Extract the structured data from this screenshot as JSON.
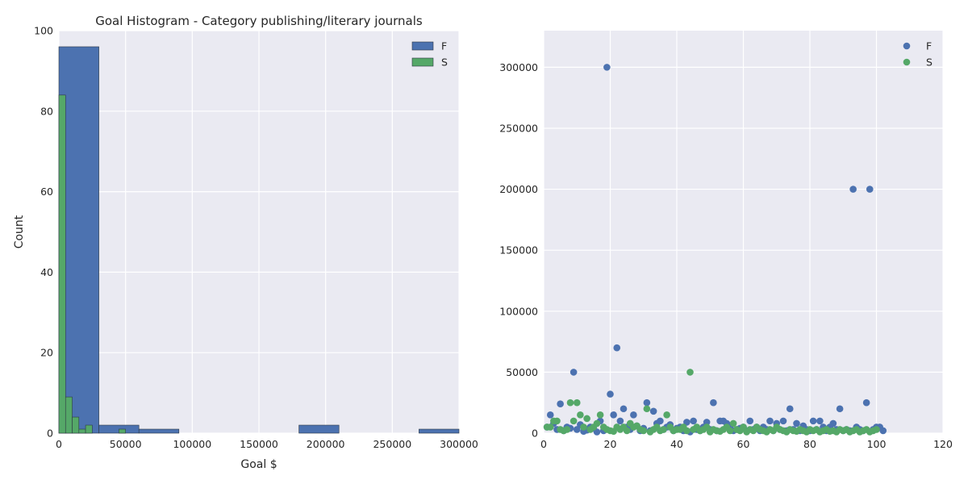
{
  "chart_data": [
    {
      "type": "bar",
      "subtype": "histogram",
      "title": "Goal Histogram - Category publishing/literary journals",
      "xlabel": "Goal $",
      "ylabel": "Count",
      "xlim": [
        0,
        300000
      ],
      "ylim": [
        0,
        100
      ],
      "xticks": [
        "0",
        "50000",
        "100000",
        "150000",
        "200000",
        "250000",
        "300000"
      ],
      "yticks": [
        "0",
        "20",
        "40",
        "60",
        "80",
        "100"
      ],
      "grid": true,
      "legend_position": "top-right",
      "series": [
        {
          "name": "F",
          "color": "#4C72B0",
          "bins": [
            {
              "x0": 0,
              "x1": 30000,
              "count": 96
            },
            {
              "x0": 30000,
              "x1": 60000,
              "count": 2
            },
            {
              "x0": 60000,
              "x1": 90000,
              "count": 1
            },
            {
              "x0": 180000,
              "x1": 210000,
              "count": 2
            },
            {
              "x0": 270000,
              "x1": 300000,
              "count": 1
            }
          ]
        },
        {
          "name": "S",
          "color": "#55A868",
          "bins": [
            {
              "x0": 0,
              "x1": 5000,
              "count": 84
            },
            {
              "x0": 5000,
              "x1": 10000,
              "count": 9
            },
            {
              "x0": 10000,
              "x1": 15000,
              "count": 4
            },
            {
              "x0": 15000,
              "x1": 20000,
              "count": 1
            },
            {
              "x0": 20000,
              "x1": 25000,
              "count": 2
            },
            {
              "x0": 45000,
              "x1": 50000,
              "count": 1
            }
          ]
        }
      ]
    },
    {
      "type": "scatter",
      "title": "",
      "xlabel": "",
      "ylabel": "",
      "xlim": [
        0,
        120
      ],
      "ylim": [
        0,
        330000
      ],
      "xticks": [
        "0",
        "20",
        "40",
        "60",
        "80",
        "100",
        "120"
      ],
      "yticks": [
        "0",
        "50000",
        "100000",
        "150000",
        "200000",
        "250000",
        "300000"
      ],
      "grid": true,
      "legend_position": "top-right",
      "series": [
        {
          "name": "F",
          "color": "#4C72B0",
          "points": [
            [
              1,
              5000
            ],
            [
              2,
              15000
            ],
            [
              3,
              8000
            ],
            [
              4,
              3000
            ],
            [
              5,
              24000
            ],
            [
              6,
              2000
            ],
            [
              7,
              5000
            ],
            [
              8,
              4000
            ],
            [
              9,
              50000
            ],
            [
              10,
              3000
            ],
            [
              11,
              7000
            ],
            [
              12,
              1500
            ],
            [
              13,
              2500
            ],
            [
              14,
              5000
            ],
            [
              15,
              4000
            ],
            [
              16,
              1000
            ],
            [
              17,
              10000
            ],
            [
              18,
              2000
            ],
            [
              19,
              300000
            ],
            [
              20,
              32000
            ],
            [
              21,
              15000
            ],
            [
              22,
              70000
            ],
            [
              23,
              10000
            ],
            [
              24,
              20000
            ],
            [
              25,
              5000
            ],
            [
              26,
              3000
            ],
            [
              27,
              15000
            ],
            [
              28,
              6000
            ],
            [
              29,
              2000
            ],
            [
              30,
              4000
            ],
            [
              31,
              25000
            ],
            [
              32,
              2000
            ],
            [
              33,
              18000
            ],
            [
              34,
              8000
            ],
            [
              35,
              10000
            ],
            [
              36,
              3000
            ],
            [
              37,
              5000
            ],
            [
              38,
              7000
            ],
            [
              39,
              2000
            ],
            [
              40,
              4000
            ],
            [
              41,
              5000
            ],
            [
              42,
              2000
            ],
            [
              43,
              9000
            ],
            [
              44,
              1000
            ],
            [
              45,
              10000
            ],
            [
              46,
              3000
            ],
            [
              47,
              2000
            ],
            [
              48,
              5000
            ],
            [
              49,
              9000
            ],
            [
              50,
              3000
            ],
            [
              51,
              25000
            ],
            [
              52,
              2000
            ],
            [
              53,
              10000
            ],
            [
              54,
              10000
            ],
            [
              55,
              8000
            ],
            [
              56,
              5000
            ],
            [
              57,
              2000
            ],
            [
              58,
              3000
            ],
            [
              59,
              4000
            ],
            [
              60,
              5000
            ],
            [
              61,
              2000
            ],
            [
              62,
              10000
            ],
            [
              63,
              3000
            ],
            [
              64,
              5000
            ],
            [
              65,
              2000
            ],
            [
              66,
              5000
            ],
            [
              67,
              3000
            ],
            [
              68,
              10000
            ],
            [
              69,
              2000
            ],
            [
              70,
              8000
            ],
            [
              71,
              3000
            ],
            [
              72,
              10000
            ],
            [
              73,
              2000
            ],
            [
              74,
              20000
            ],
            [
              75,
              3000
            ],
            [
              76,
              8000
            ],
            [
              77,
              2000
            ],
            [
              78,
              6000
            ],
            [
              79,
              3000
            ],
            [
              80,
              2000
            ],
            [
              81,
              10000
            ],
            [
              82,
              3000
            ],
            [
              83,
              10000
            ],
            [
              84,
              5000
            ],
            [
              85,
              2000
            ],
            [
              86,
              5000
            ],
            [
              87,
              8000
            ],
            [
              88,
              3000
            ],
            [
              89,
              20000
            ],
            [
              90,
              2000
            ],
            [
              91,
              3000
            ],
            [
              92,
              2000
            ],
            [
              93,
              200000
            ],
            [
              94,
              5000
            ],
            [
              95,
              3000
            ],
            [
              96,
              2000
            ],
            [
              97,
              25000
            ],
            [
              98,
              200000
            ],
            [
              99,
              3000
            ],
            [
              100,
              5000
            ],
            [
              101,
              5000
            ],
            [
              102,
              2000
            ]
          ]
        },
        {
          "name": "S",
          "color": "#55A868",
          "points": [
            [
              1,
              5000
            ],
            [
              2,
              5000
            ],
            [
              3,
              10000
            ],
            [
              4,
              10000
            ],
            [
              5,
              3000
            ],
            [
              6,
              2000
            ],
            [
              7,
              3000
            ],
            [
              8,
              25000
            ],
            [
              9,
              10000
            ],
            [
              10,
              25000
            ],
            [
              11,
              15000
            ],
            [
              12,
              5000
            ],
            [
              13,
              12000
            ],
            [
              14,
              3000
            ],
            [
              15,
              5000
            ],
            [
              16,
              8000
            ],
            [
              17,
              15000
            ],
            [
              18,
              5000
            ],
            [
              19,
              3000
            ],
            [
              20,
              2000
            ],
            [
              21,
              1500
            ],
            [
              22,
              5000
            ],
            [
              23,
              3000
            ],
            [
              24,
              5000
            ],
            [
              25,
              2000
            ],
            [
              26,
              8000
            ],
            [
              27,
              5000
            ],
            [
              28,
              6000
            ],
            [
              29,
              3000
            ],
            [
              30,
              2000
            ],
            [
              31,
              20000
            ],
            [
              32,
              1000
            ],
            [
              33,
              3000
            ],
            [
              34,
              5000
            ],
            [
              35,
              2000
            ],
            [
              36,
              3000
            ],
            [
              37,
              15000
            ],
            [
              38,
              5000
            ],
            [
              39,
              2000
            ],
            [
              40,
              3000
            ],
            [
              41,
              3000
            ],
            [
              42,
              5000
            ],
            [
              43,
              2000
            ],
            [
              44,
              50000
            ],
            [
              45,
              3000
            ],
            [
              46,
              5000
            ],
            [
              47,
              2000
            ],
            [
              48,
              3000
            ],
            [
              49,
              5000
            ],
            [
              50,
              1000
            ],
            [
              51,
              3000
            ],
            [
              52,
              2000
            ],
            [
              53,
              1500
            ],
            [
              54,
              3000
            ],
            [
              55,
              5000
            ],
            [
              56,
              2000
            ],
            [
              57,
              8000
            ],
            [
              58,
              3000
            ],
            [
              59,
              2000
            ],
            [
              60,
              5000
            ],
            [
              61,
              1000
            ],
            [
              62,
              3000
            ],
            [
              63,
              2000
            ],
            [
              64,
              5000
            ],
            [
              65,
              3000
            ],
            [
              66,
              2000
            ],
            [
              67,
              1000
            ],
            [
              68,
              3000
            ],
            [
              69,
              2000
            ],
            [
              70,
              5000
            ],
            [
              71,
              3000
            ],
            [
              72,
              2000
            ],
            [
              73,
              1000
            ],
            [
              74,
              3000
            ],
            [
              75,
              2000
            ],
            [
              76,
              1500
            ],
            [
              77,
              3000
            ],
            [
              78,
              2000
            ],
            [
              79,
              1000
            ],
            [
              80,
              3000
            ],
            [
              81,
              2000
            ],
            [
              82,
              3000
            ],
            [
              83,
              1000
            ],
            [
              84,
              2000
            ],
            [
              85,
              3000
            ],
            [
              86,
              1500
            ],
            [
              87,
              2000
            ],
            [
              88,
              1000
            ],
            [
              89,
              3000
            ],
            [
              90,
              2000
            ],
            [
              91,
              3000
            ],
            [
              92,
              1000
            ],
            [
              93,
              2000
            ],
            [
              94,
              3000
            ],
            [
              95,
              1000
            ],
            [
              96,
              2000
            ],
            [
              97,
              3000
            ],
            [
              98,
              1000
            ],
            [
              99,
              2000
            ],
            [
              100,
              3000
            ]
          ]
        }
      ]
    }
  ]
}
